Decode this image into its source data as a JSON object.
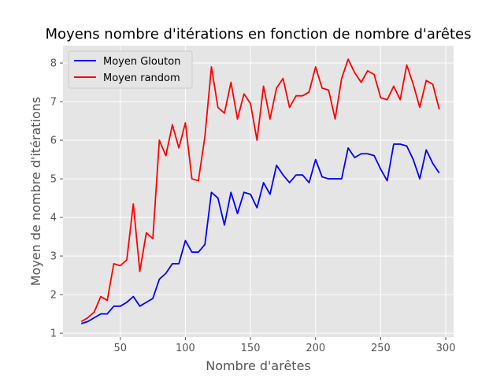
{
  "chart_data": {
    "type": "line",
    "title": "Moyens nombre d'itérations en fonction de nombre d'arêtes",
    "xlabel": "Nombre d'arêtes",
    "ylabel": "Moyen de nombre d'itérations",
    "xlim": [
      6,
      306
    ],
    "ylim": [
      0.9,
      8.45
    ],
    "xticks": [
      50,
      100,
      150,
      200,
      250,
      300
    ],
    "yticks": [
      1,
      2,
      3,
      4,
      5,
      6,
      7,
      8
    ],
    "grid": true,
    "legend_position": "top-left",
    "x": [
      20,
      25,
      30,
      35,
      40,
      45,
      50,
      55,
      60,
      65,
      70,
      75,
      80,
      85,
      90,
      95,
      100,
      105,
      110,
      115,
      120,
      125,
      130,
      135,
      140,
      145,
      150,
      155,
      160,
      165,
      170,
      175,
      180,
      185,
      190,
      195,
      200,
      205,
      210,
      215,
      220,
      225,
      230,
      235,
      240,
      245,
      250,
      255,
      260,
      265,
      270,
      275,
      280,
      285,
      290,
      295
    ],
    "series": [
      {
        "name": "Moyen Glouton",
        "color": "#0000ff",
        "values": [
          1.25,
          1.3,
          1.4,
          1.5,
          1.5,
          1.7,
          1.7,
          1.8,
          1.95,
          1.7,
          1.8,
          1.9,
          2.4,
          2.55,
          2.8,
          2.8,
          3.4,
          3.1,
          3.1,
          3.3,
          4.65,
          4.5,
          3.8,
          4.65,
          4.1,
          4.65,
          4.6,
          4.25,
          4.9,
          4.6,
          5.35,
          5.1,
          4.9,
          5.1,
          5.1,
          4.9,
          5.5,
          5.05,
          5.0,
          5.0,
          5.0,
          5.8,
          5.55,
          5.65,
          5.65,
          5.6,
          5.25,
          4.95,
          5.9,
          5.9,
          5.85,
          5.5,
          5.0,
          5.75,
          5.4,
          5.15
        ]
      },
      {
        "name": "Moyen random",
        "color": "#ff0000",
        "values": [
          1.3,
          1.4,
          1.55,
          1.95,
          1.85,
          2.8,
          2.75,
          2.9,
          4.35,
          2.6,
          3.6,
          3.45,
          6.0,
          5.6,
          6.4,
          5.8,
          6.45,
          5.0,
          4.95,
          6.1,
          7.9,
          6.85,
          6.7,
          7.5,
          6.55,
          7.2,
          6.95,
          6.0,
          7.4,
          6.55,
          7.35,
          7.6,
          6.85,
          7.15,
          7.15,
          7.25,
          7.9,
          7.35,
          7.3,
          6.55,
          7.6,
          8.1,
          7.75,
          7.5,
          7.8,
          7.7,
          7.1,
          7.05,
          7.4,
          7.05,
          7.95,
          7.45,
          6.85,
          7.55,
          7.45,
          6.8
        ]
      }
    ]
  }
}
